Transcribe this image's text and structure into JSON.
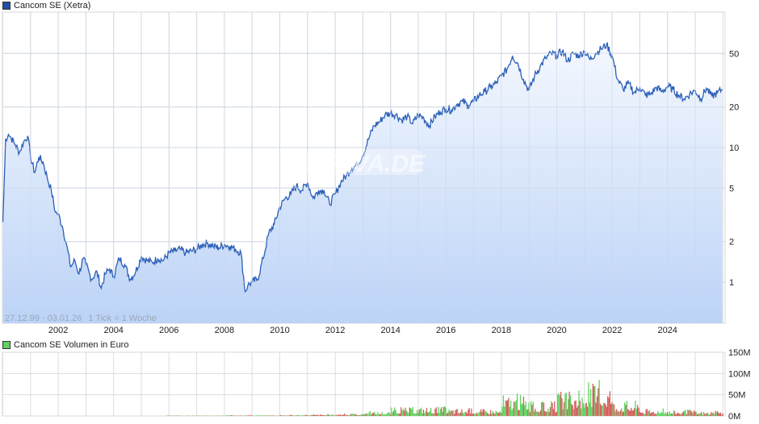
{
  "price_chart": {
    "legend_label": "Cancom SE (Xetra)",
    "legend_color": "#1f4fa8",
    "range_label": "27.12.99 - 03.01.26",
    "tick_label": "1 Tick = 1 Woche",
    "watermark": "ARIVA.DE",
    "y_ticks": [
      "50",
      "20",
      "10",
      "5",
      "2",
      "1"
    ],
    "x_ticks": [
      "2002",
      "2004",
      "2006",
      "2008",
      "2010",
      "2012",
      "2014",
      "2016",
      "2018",
      "2020",
      "2022",
      "2024"
    ]
  },
  "volume_chart": {
    "legend_label": "Cancom SE Volumen in Euro",
    "legend_color": "#5fd35f",
    "y_ticks": [
      "150M",
      "100M",
      "50M",
      "0M"
    ],
    "up_color": "#5fd35f",
    "down_color": "#d65c5c"
  },
  "chart_data": [
    {
      "type": "line",
      "title": "Cancom SE (Xetra)",
      "xlabel": "",
      "ylabel": "",
      "yscale": "log",
      "ylim": [
        0.55,
        95
      ],
      "xlim": [
        "1999-12-27",
        "2026-01-03"
      ],
      "grid": true,
      "legend_position": "top-left",
      "annotations": [
        "27.12.99 - 03.01.26",
        "1 Tick = 1 Woche"
      ],
      "x": [
        2000.0,
        2000.05,
        2000.1,
        2000.2,
        2000.3,
        2000.45,
        2000.6,
        2000.75,
        2000.9,
        2001.0,
        2001.15,
        2001.3,
        2001.45,
        2001.6,
        2001.75,
        2001.9,
        2002.0,
        2002.15,
        2002.3,
        2002.45,
        2002.6,
        2002.75,
        2002.9,
        2003.0,
        2003.2,
        2003.4,
        2003.55,
        2003.7,
        2003.85,
        2004.0,
        2004.2,
        2004.4,
        2004.6,
        2004.8,
        2005.0,
        2005.2,
        2005.4,
        2005.6,
        2005.8,
        2006.0,
        2006.2,
        2006.4,
        2006.6,
        2006.8,
        2007.0,
        2007.2,
        2007.4,
        2007.6,
        2007.8,
        2008.0,
        2008.2,
        2008.4,
        2008.6,
        2008.75,
        2008.85,
        2009.0,
        2009.2,
        2009.4,
        2009.6,
        2009.8,
        2010.0,
        2010.2,
        2010.4,
        2010.6,
        2010.8,
        2011.0,
        2011.2,
        2011.4,
        2011.6,
        2011.8,
        2012.0,
        2012.2,
        2012.4,
        2012.6,
        2012.8,
        2013.0,
        2013.2,
        2013.4,
        2013.6,
        2013.8,
        2014.0,
        2014.2,
        2014.4,
        2014.6,
        2014.8,
        2015.0,
        2015.2,
        2015.4,
        2015.6,
        2015.8,
        2016.0,
        2016.2,
        2016.4,
        2016.6,
        2016.8,
        2017.0,
        2017.2,
        2017.4,
        2017.6,
        2017.8,
        2018.0,
        2018.2,
        2018.4,
        2018.6,
        2018.8,
        2019.0,
        2019.2,
        2019.4,
        2019.6,
        2019.8,
        2020.0,
        2020.2,
        2020.4,
        2020.6,
        2020.8,
        2021.0,
        2021.2,
        2021.4,
        2021.6,
        2021.8,
        2022.0,
        2022.2,
        2022.4,
        2022.6,
        2022.8,
        2023.0,
        2023.2,
        2023.4,
        2023.6,
        2023.8,
        2024.0,
        2024.2,
        2024.4,
        2024.6,
        2024.8,
        2025.0,
        2025.2,
        2025.4,
        2025.6,
        2025.8,
        2025.98
      ],
      "y": [
        2.8,
        5.5,
        11.5,
        12.5,
        11.8,
        10.5,
        9.2,
        11.0,
        12.2,
        8.5,
        6.5,
        8.5,
        7.8,
        6.0,
        4.8,
        3.3,
        3.2,
        2.6,
        1.9,
        1.3,
        1.45,
        1.15,
        1.5,
        1.35,
        1.05,
        1.2,
        0.9,
        1.15,
        1.25,
        1.1,
        1.5,
        1.35,
        1.05,
        1.2,
        1.55,
        1.45,
        1.4,
        1.5,
        1.45,
        1.65,
        1.7,
        1.75,
        1.65,
        1.7,
        1.75,
        1.9,
        1.95,
        1.85,
        1.8,
        1.9,
        1.85,
        1.75,
        1.65,
        0.85,
        0.95,
        1.0,
        1.05,
        1.5,
        2.3,
        2.7,
        3.6,
        4.2,
        4.5,
        5.2,
        4.8,
        5.5,
        4.2,
        4.8,
        4.8,
        3.8,
        4.5,
        5.5,
        6.2,
        7.0,
        7.5,
        8.8,
        11.5,
        14.5,
        15.5,
        17.5,
        18.0,
        17.5,
        16.0,
        17.0,
        15.0,
        17.5,
        16.5,
        14.5,
        17.0,
        18.5,
        19.5,
        19.0,
        21.0,
        22.0,
        20.5,
        22.0,
        24.5,
        26.0,
        28.0,
        30.0,
        34.0,
        38.0,
        48.0,
        42.0,
        32.0,
        26.5,
        34.0,
        40.0,
        46.0,
        50.0,
        48.0,
        52.0,
        44.0,
        50.0,
        48.0,
        52.0,
        45.0,
        50.0,
        54.0,
        58.0,
        48.0,
        32.0,
        27.0,
        30.0,
        25.5,
        28.0,
        24.5,
        25.0,
        28.0,
        26.0,
        28.5,
        27.0,
        24.5,
        23.0,
        25.0,
        26.5,
        23.0,
        27.5,
        24.0,
        25.5,
        27.0
      ]
    },
    {
      "type": "bar",
      "title": "Cancom SE Volumen in Euro",
      "ylabel": "",
      "ylim": [
        0,
        150000000
      ],
      "y_ticks": [
        "0M",
        "50M",
        "100M",
        "150M"
      ],
      "series_colors": {
        "up": "#5fd35f",
        "down": "#d65c5c"
      },
      "x": [
        2006,
        2007,
        2008,
        2009,
        2010,
        2011,
        2012,
        2013,
        2014,
        2015,
        2016,
        2017,
        2018,
        2019,
        2020,
        2021,
        2022,
        2023,
        2024,
        2025
      ],
      "values_approx_peak_M": [
        1,
        1,
        2,
        2,
        3,
        4,
        6,
        12,
        22,
        24,
        20,
        18,
        55,
        35,
        60,
        85,
        40,
        18,
        15,
        12
      ]
    }
  ]
}
